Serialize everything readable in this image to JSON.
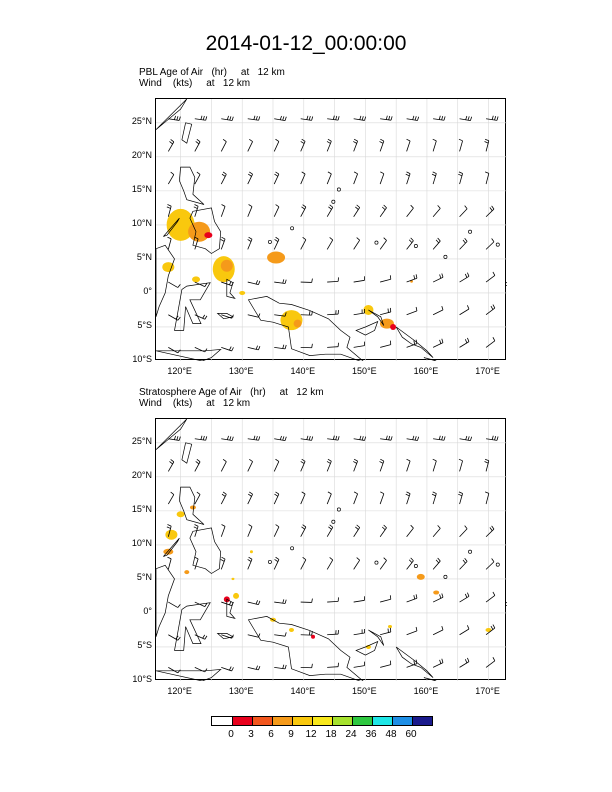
{
  "title": "2014-01-12_00:00:00",
  "panels": [
    {
      "name": "pbl",
      "title_line1": "PBL Age of Air   (hr)     at   12 km",
      "title_line2": "Wind    (kts)     at   12 km"
    },
    {
      "name": "stratosphere",
      "title_line1": "Stratosphere Age of Air   (hr)     at   12 km",
      "title_line2": "Wind    (kts)     at   12 km"
    }
  ],
  "lat_labels": [
    "25°N",
    "20°N",
    "15°N",
    "10°N",
    "5°N",
    "0°",
    "5°S",
    "10°S"
  ],
  "lon_labels": [
    "120°E",
    "130°E",
    "140°E",
    "150°E",
    "160°E",
    "170°E"
  ],
  "colorbar": {
    "labels": [
      "0",
      "3",
      "6",
      "9",
      "12",
      "18",
      "24",
      "36",
      "48",
      "60"
    ],
    "colors": [
      "#ffffff",
      "#e8001c",
      "#f2561d",
      "#f59a1a",
      "#f9c80e",
      "#f8e81c",
      "#a6e22e",
      "#2ec840",
      "#1ee6e6",
      "#1e8fe6",
      "#1a1a8c"
    ]
  },
  "colors": {
    "orange_light": "#f9c80e",
    "orange": "#f59a1a",
    "red": "#e8001c"
  }
}
